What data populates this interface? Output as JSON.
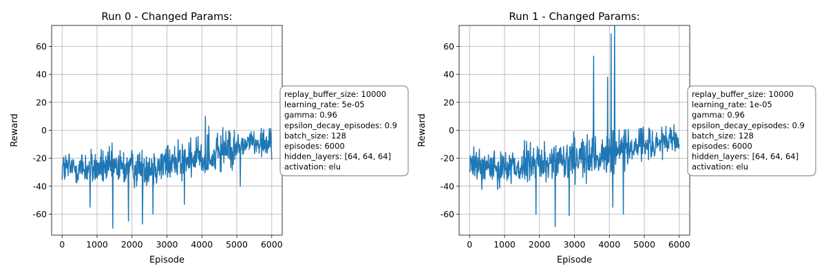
{
  "chart_data": [
    {
      "type": "line",
      "title": "Run 0 - Changed Params:",
      "xlabel": "Episode",
      "ylabel": "Reward",
      "xlim": [
        -300,
        6300
      ],
      "ylim": [
        -75,
        75
      ],
      "xticks": [
        0,
        1000,
        2000,
        3000,
        4000,
        5000,
        6000
      ],
      "yticks": [
        -60,
        -40,
        -20,
        0,
        20,
        40,
        60
      ],
      "grid": true,
      "line_color": "#1f77b4",
      "series": [
        {
          "x_range": [
            0,
            6000
          ],
          "x_step": 10,
          "band_segments": [
            {
              "x": 0,
              "mean": -27,
              "spread": 9
            },
            {
              "x": 1000,
              "mean": -27,
              "spread": 9
            },
            {
              "x": 2000,
              "mean": -27,
              "spread": 10
            },
            {
              "x": 3000,
              "mean": -24,
              "spread": 10
            },
            {
              "x": 4000,
              "mean": -20,
              "spread": 10
            },
            {
              "x": 5000,
              "mean": -14,
              "spread": 9
            },
            {
              "x": 5300,
              "mean": -8,
              "spread": 6
            },
            {
              "x": 6000,
              "mean": -10,
              "spread": 7
            }
          ],
          "extremes": [
            {
              "x": 1450,
              "y": -70
            },
            {
              "x": 1900,
              "y": -65
            },
            {
              "x": 2300,
              "y": -67
            },
            {
              "x": 2600,
              "y": -60
            },
            {
              "x": 800,
              "y": -55
            },
            {
              "x": 3500,
              "y": -53
            },
            {
              "x": 4100,
              "y": 10
            },
            {
              "x": 4200,
              "y": 3
            },
            {
              "x": 4600,
              "y": 2
            },
            {
              "x": 5100,
              "y": -40
            }
          ]
        }
      ],
      "annotation_lines": [
        "replay_buffer_size: 10000",
        "learning_rate: 5e-05",
        "gamma: 0.96",
        "epsilon_decay_episodes: 0.9",
        "batch_size: 128",
        "episodes: 6000",
        "hidden_layers: [64, 64, 64]",
        "activation: elu"
      ]
    },
    {
      "type": "line",
      "title": "Run 1 - Changed Params:",
      "xlabel": "Episode",
      "ylabel": "Reward",
      "xlim": [
        -300,
        6300
      ],
      "ylim": [
        -75,
        75
      ],
      "xticks": [
        0,
        1000,
        2000,
        3000,
        4000,
        5000,
        6000
      ],
      "yticks": [
        -60,
        -40,
        -20,
        0,
        20,
        40,
        60
      ],
      "grid": true,
      "line_color": "#1f77b4",
      "series": [
        {
          "x_range": [
            0,
            6000
          ],
          "x_step": 10,
          "band_segments": [
            {
              "x": 0,
              "mean": -26,
              "spread": 9
            },
            {
              "x": 1000,
              "mean": -26,
              "spread": 9
            },
            {
              "x": 2000,
              "mean": -24,
              "spread": 10
            },
            {
              "x": 3000,
              "mean": -22,
              "spread": 11
            },
            {
              "x": 4000,
              "mean": -18,
              "spread": 11
            },
            {
              "x": 5000,
              "mean": -13,
              "spread": 9
            },
            {
              "x": 5500,
              "mean": -9,
              "spread": 7
            },
            {
              "x": 6000,
              "mean": -10,
              "spread": 7
            }
          ],
          "extremes": [
            {
              "x": 1900,
              "y": -60
            },
            {
              "x": 2450,
              "y": -69
            },
            {
              "x": 2850,
              "y": -61
            },
            {
              "x": 3550,
              "y": 53
            },
            {
              "x": 3950,
              "y": 38
            },
            {
              "x": 4050,
              "y": 69
            },
            {
              "x": 4150,
              "y": 75
            },
            {
              "x": 4100,
              "y": -55
            },
            {
              "x": 4400,
              "y": -60
            }
          ]
        }
      ],
      "annotation_lines": [
        "replay_buffer_size: 10000",
        "learning_rate: 1e-05",
        "gamma: 0.96",
        "epsilon_decay_episodes: 0.9",
        "batch_size: 128",
        "episodes: 6000",
        "hidden_layers: [64, 64, 64]",
        "activation: elu"
      ]
    }
  ]
}
